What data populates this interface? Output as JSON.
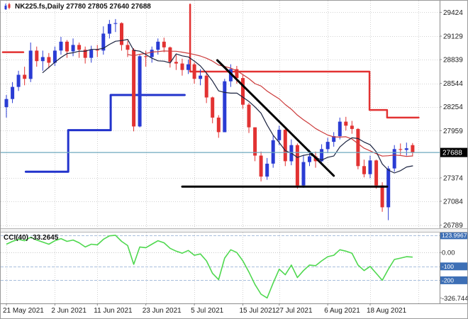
{
  "window": {
    "title_text": "NK225.fs,Daily 27780 27805 27640 27688",
    "symbol": "NK225.fs",
    "period": "Daily",
    "ohlc": {
      "open": "27780",
      "high": "27805",
      "low": "27640",
      "close": "27688"
    }
  },
  "indicator": {
    "label": "CCI(40) -33.2645",
    "name": "CCI(40)",
    "current_value": "-33.2645"
  },
  "price_axis": {
    "labels": [
      "29424",
      "29129",
      "28839",
      "28544",
      "28254",
      "27959",
      "27374",
      "27084",
      "26789"
    ],
    "bid_tag": "27688"
  },
  "indicator_axis": {
    "labels": [
      {
        "text": "123.9967",
        "value": 123.9967,
        "tag": true
      },
      {
        "text": "0.00",
        "value": 0,
        "tag": false
      },
      {
        "text": "-100",
        "value": -100,
        "tag": true
      },
      {
        "text": "-200",
        "value": -200,
        "tag": true
      },
      {
        "text": "-326.744",
        "value": -326.744,
        "tag": false
      }
    ]
  },
  "time_axis": {
    "labels": [
      {
        "text": "21 May 2021",
        "bar": 0
      },
      {
        "text": "2 Jun 2021",
        "bar": 8
      },
      {
        "text": "11 Jun 2021",
        "bar": 15
      },
      {
        "text": "23 Jun 2021",
        "bar": 23
      },
      {
        "text": "5 Jul 2021",
        "bar": 31
      },
      {
        "text": "15 Jul 2021",
        "bar": 39
      },
      {
        "text": "27 Jul 2021",
        "bar": 45
      },
      {
        "text": "6 Aug 2021",
        "bar": 53
      },
      {
        "text": "18 Aug 2021",
        "bar": 60
      }
    ],
    "extra_gridline_bars": [
      68
    ]
  },
  "colors": {
    "bull": "#2a3cd4",
    "bear": "#e23232",
    "ma_fast": "#1b2340",
    "ma_slow": "#cc3a3a",
    "step_blue": "#2233cc",
    "step_red": "#e23232",
    "object_black": "#000000",
    "bid_line": "#6fa8bf",
    "cci_line": "#4fd84f",
    "grid": "#d2d2d2",
    "level_line": "#a8bedc",
    "zero_line": "#c8c8c8",
    "tag_black_bg": "#000000",
    "tag_blue_bg": "#3d6fb5",
    "axis_text": "#1c1c1c",
    "axis_line": "#8c8c8c"
  },
  "chart_data": {
    "type": "candlestick",
    "title": "NK225.fs Daily with CCI(40)",
    "ylim": [
      26750,
      29550
    ],
    "ma_fast_period": 7,
    "ma_slow_period": 21,
    "candles": [
      [
        28250,
        28400,
        28120,
        28350
      ],
      [
        28350,
        28560,
        28300,
        28500
      ],
      [
        28500,
        28700,
        28450,
        28650
      ],
      [
        28650,
        28750,
        28520,
        28600
      ],
      [
        28600,
        29050,
        28560,
        28950
      ],
      [
        28950,
        29000,
        28750,
        28820
      ],
      [
        28820,
        28950,
        28700,
        28870
      ],
      [
        28870,
        28920,
        28730,
        28800
      ],
      [
        28800,
        29000,
        28760,
        28950
      ],
      [
        28950,
        29120,
        28900,
        29060
      ],
      [
        29060,
        29080,
        28860,
        28940
      ],
      [
        28940,
        29100,
        28880,
        29020
      ],
      [
        29020,
        29050,
        28860,
        28960
      ],
      [
        28960,
        29000,
        28790,
        28860
      ],
      [
        28860,
        29010,
        28800,
        28960
      ],
      [
        28960,
        29020,
        28870,
        28950
      ],
      [
        28950,
        29250,
        28900,
        29160
      ],
      [
        29160,
        29330,
        29100,
        29280
      ],
      [
        29280,
        29340,
        29180,
        29290
      ],
      [
        29290,
        29300,
        28950,
        29020
      ],
      [
        29020,
        29070,
        28870,
        28960
      ],
      [
        28960,
        28980,
        27950,
        28010
      ],
      [
        28010,
        28900,
        28000,
        28880
      ],
      [
        28880,
        28950,
        28750,
        28870
      ],
      [
        28870,
        29000,
        28800,
        28960
      ],
      [
        28960,
        29100,
        28900,
        29060
      ],
      [
        29060,
        29110,
        28930,
        28990
      ],
      [
        28990,
        29000,
        28740,
        28810
      ],
      [
        28810,
        28900,
        28710,
        28790
      ],
      [
        28790,
        28850,
        28640,
        28710
      ],
      [
        28710,
        28840,
        28660,
        28780
      ],
      [
        28780,
        28800,
        28540,
        28600
      ],
      [
        28600,
        28720,
        28520,
        28640
      ],
      [
        28640,
        28680,
        28300,
        28370
      ],
      [
        28370,
        28380,
        28050,
        28120
      ],
      [
        28120,
        28150,
        27870,
        27940
      ],
      [
        27940,
        28600,
        27940,
        28570
      ],
      [
        28570,
        28780,
        28500,
        28720
      ],
      [
        28720,
        28760,
        28540,
        28610
      ],
      [
        28610,
        28650,
        28230,
        28280
      ],
      [
        28280,
        28300,
        27930,
        28000
      ],
      [
        28000,
        28000,
        27580,
        27650
      ],
      [
        27650,
        27700,
        27330,
        27390
      ],
      [
        27390,
        27620,
        27350,
        27550
      ],
      [
        27550,
        27900,
        27500,
        27840
      ],
      [
        27840,
        28020,
        27780,
        27970
      ],
      [
        27970,
        27980,
        27520,
        27580
      ],
      [
        27580,
        27850,
        27530,
        27780
      ],
      [
        27780,
        27800,
        27240,
        27280
      ],
      [
        27280,
        27650,
        27250,
        27570
      ],
      [
        27570,
        27720,
        27520,
        27640
      ],
      [
        27640,
        27700,
        27500,
        27580
      ],
      [
        27580,
        27790,
        27570,
        27730
      ],
      [
        27730,
        27870,
        27680,
        27820
      ],
      [
        27820,
        27940,
        27760,
        27890
      ],
      [
        27890,
        28120,
        27850,
        28070
      ],
      [
        28070,
        28130,
        27960,
        28020
      ],
      [
        28020,
        28080,
        27920,
        27980
      ],
      [
        27980,
        27990,
        27480,
        27520
      ],
      [
        27520,
        27600,
        27380,
        27420
      ],
      [
        27420,
        27650,
        27370,
        27590
      ],
      [
        27590,
        27600,
        27240,
        27280
      ],
      [
        27280,
        27320,
        26954,
        27010
      ],
      [
        27010,
        27520,
        26850,
        27490
      ],
      [
        27490,
        27780,
        27450,
        27730
      ],
      [
        27730,
        27800,
        27660,
        27720
      ],
      [
        27720,
        27810,
        27650,
        27740
      ],
      [
        27780,
        27805,
        27640,
        27688
      ]
    ],
    "overlays": {
      "blue_step_line": [
        [
          3.2,
          27450
        ],
        [
          10.2,
          27450
        ],
        [
          10.2,
          27965
        ],
        [
          17.2,
          27965
        ],
        [
          17.2,
          28400
        ],
        [
          29.4,
          28400
        ]
      ],
      "red_step_lines": [
        [
          [
            -0.6,
            28930
          ],
          [
            2.8,
            28930
          ]
        ],
        [
          [
            30.3,
            29520
          ],
          [
            30.3,
            28690
          ],
          [
            59.9,
            28690
          ],
          [
            59.9,
            28215
          ],
          [
            62.8,
            28215
          ],
          [
            62.8,
            28120
          ],
          [
            68,
            28120
          ]
        ]
      ],
      "trendline": [
        [
          34.8,
          28830
        ],
        [
          54,
          27400
        ]
      ],
      "support_line": [
        [
          29,
          27265
        ],
        [
          62.8,
          27265
        ]
      ],
      "bid_price": 27688
    },
    "indicator_pane": {
      "type": "line",
      "name": "CCI(40)",
      "ylim": [
        -356,
        144
      ],
      "zero": 0,
      "levels": [
        123.9967,
        -100,
        -200
      ],
      "values": [
        60,
        80,
        95,
        85,
        110,
        90,
        75,
        60,
        85,
        100,
        80,
        90,
        70,
        40,
        60,
        55,
        95,
        120,
        123.9967,
        80,
        50,
        -85,
        40,
        35,
        60,
        85,
        70,
        30,
        10,
        -5,
        15,
        -20,
        -10,
        -60,
        -150,
        -195,
        -40,
        20,
        0,
        -60,
        -140,
        -230,
        -300,
        -326.744,
        -220,
        -120,
        -160,
        -90,
        -180,
        -130,
        -90,
        -95,
        -60,
        -30,
        -20,
        20,
        10,
        -5,
        -90,
        -130,
        -100,
        -150,
        -200,
        -120,
        -50,
        -40,
        -30,
        -33.2645
      ]
    }
  }
}
